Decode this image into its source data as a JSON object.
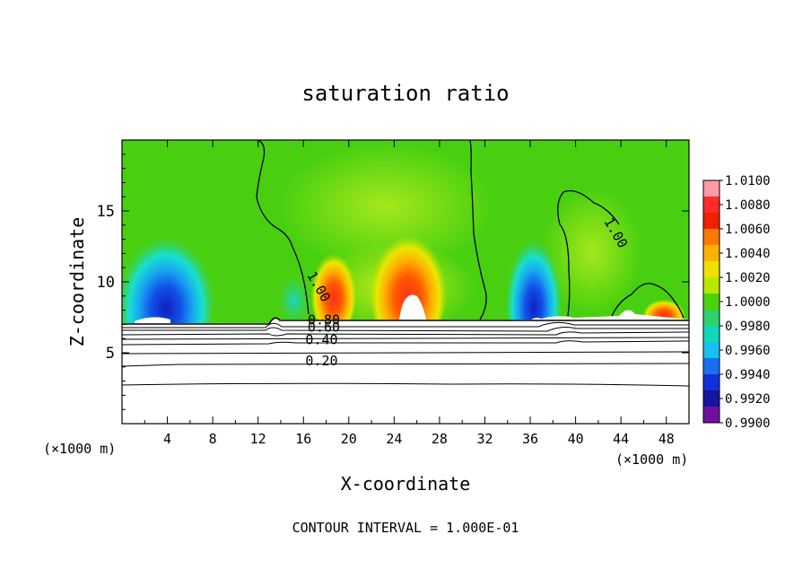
{
  "chart_data": {
    "type": "heatmap",
    "title": "saturation ratio",
    "xlabel": "X-coordinate",
    "ylabel": "Z-coordinate",
    "x_unit_left": "(×1000 m)",
    "x_unit_right": "(×1000 m)",
    "xlim": [
      0,
      50
    ],
    "ylim": [
      0,
      20
    ],
    "xticks": [
      4,
      8,
      12,
      16,
      20,
      24,
      28,
      32,
      36,
      40,
      44,
      48
    ],
    "yticks": [
      5,
      10,
      15
    ],
    "colorbar": {
      "labels": [
        "1.0100",
        "1.0080",
        "1.0060",
        "1.0040",
        "1.0020",
        "1.0000",
        "0.9980",
        "0.9960",
        "0.9940",
        "0.9920",
        "0.9900"
      ],
      "min": 0.99,
      "max": 1.01,
      "colors": [
        "#ff9aa6",
        "#ff2a2a",
        "#f02000",
        "#ff7a00",
        "#ffb000",
        "#f0e000",
        "#b8e800",
        "#4cd20c",
        "#30d06a",
        "#10d8b8",
        "#18c0f0",
        "#1870f0",
        "#1030d8",
        "#1414a0",
        "#7010a0"
      ]
    },
    "contour_labels": [
      {
        "text": "1.00",
        "x": 17.0,
        "z": 9.5
      },
      {
        "text": "1.00",
        "x": 43.2,
        "z": 13.3
      },
      {
        "text": "0.80",
        "x": 17.8,
        "z": 7.0
      },
      {
        "text": "0.60",
        "x": 17.8,
        "z": 6.5
      },
      {
        "text": "0.40",
        "x": 17.6,
        "z": 5.6
      },
      {
        "text": "0.20",
        "x": 17.6,
        "z": 4.1
      }
    ],
    "footer": "CONTOUR INTERVAL = 1.000E-01",
    "colors": {
      "background_green": "#48d010",
      "light_green": "#8ee018",
      "red": "#f02010",
      "blue": "#1040e0",
      "cyan": "#10d0e0"
    }
  }
}
